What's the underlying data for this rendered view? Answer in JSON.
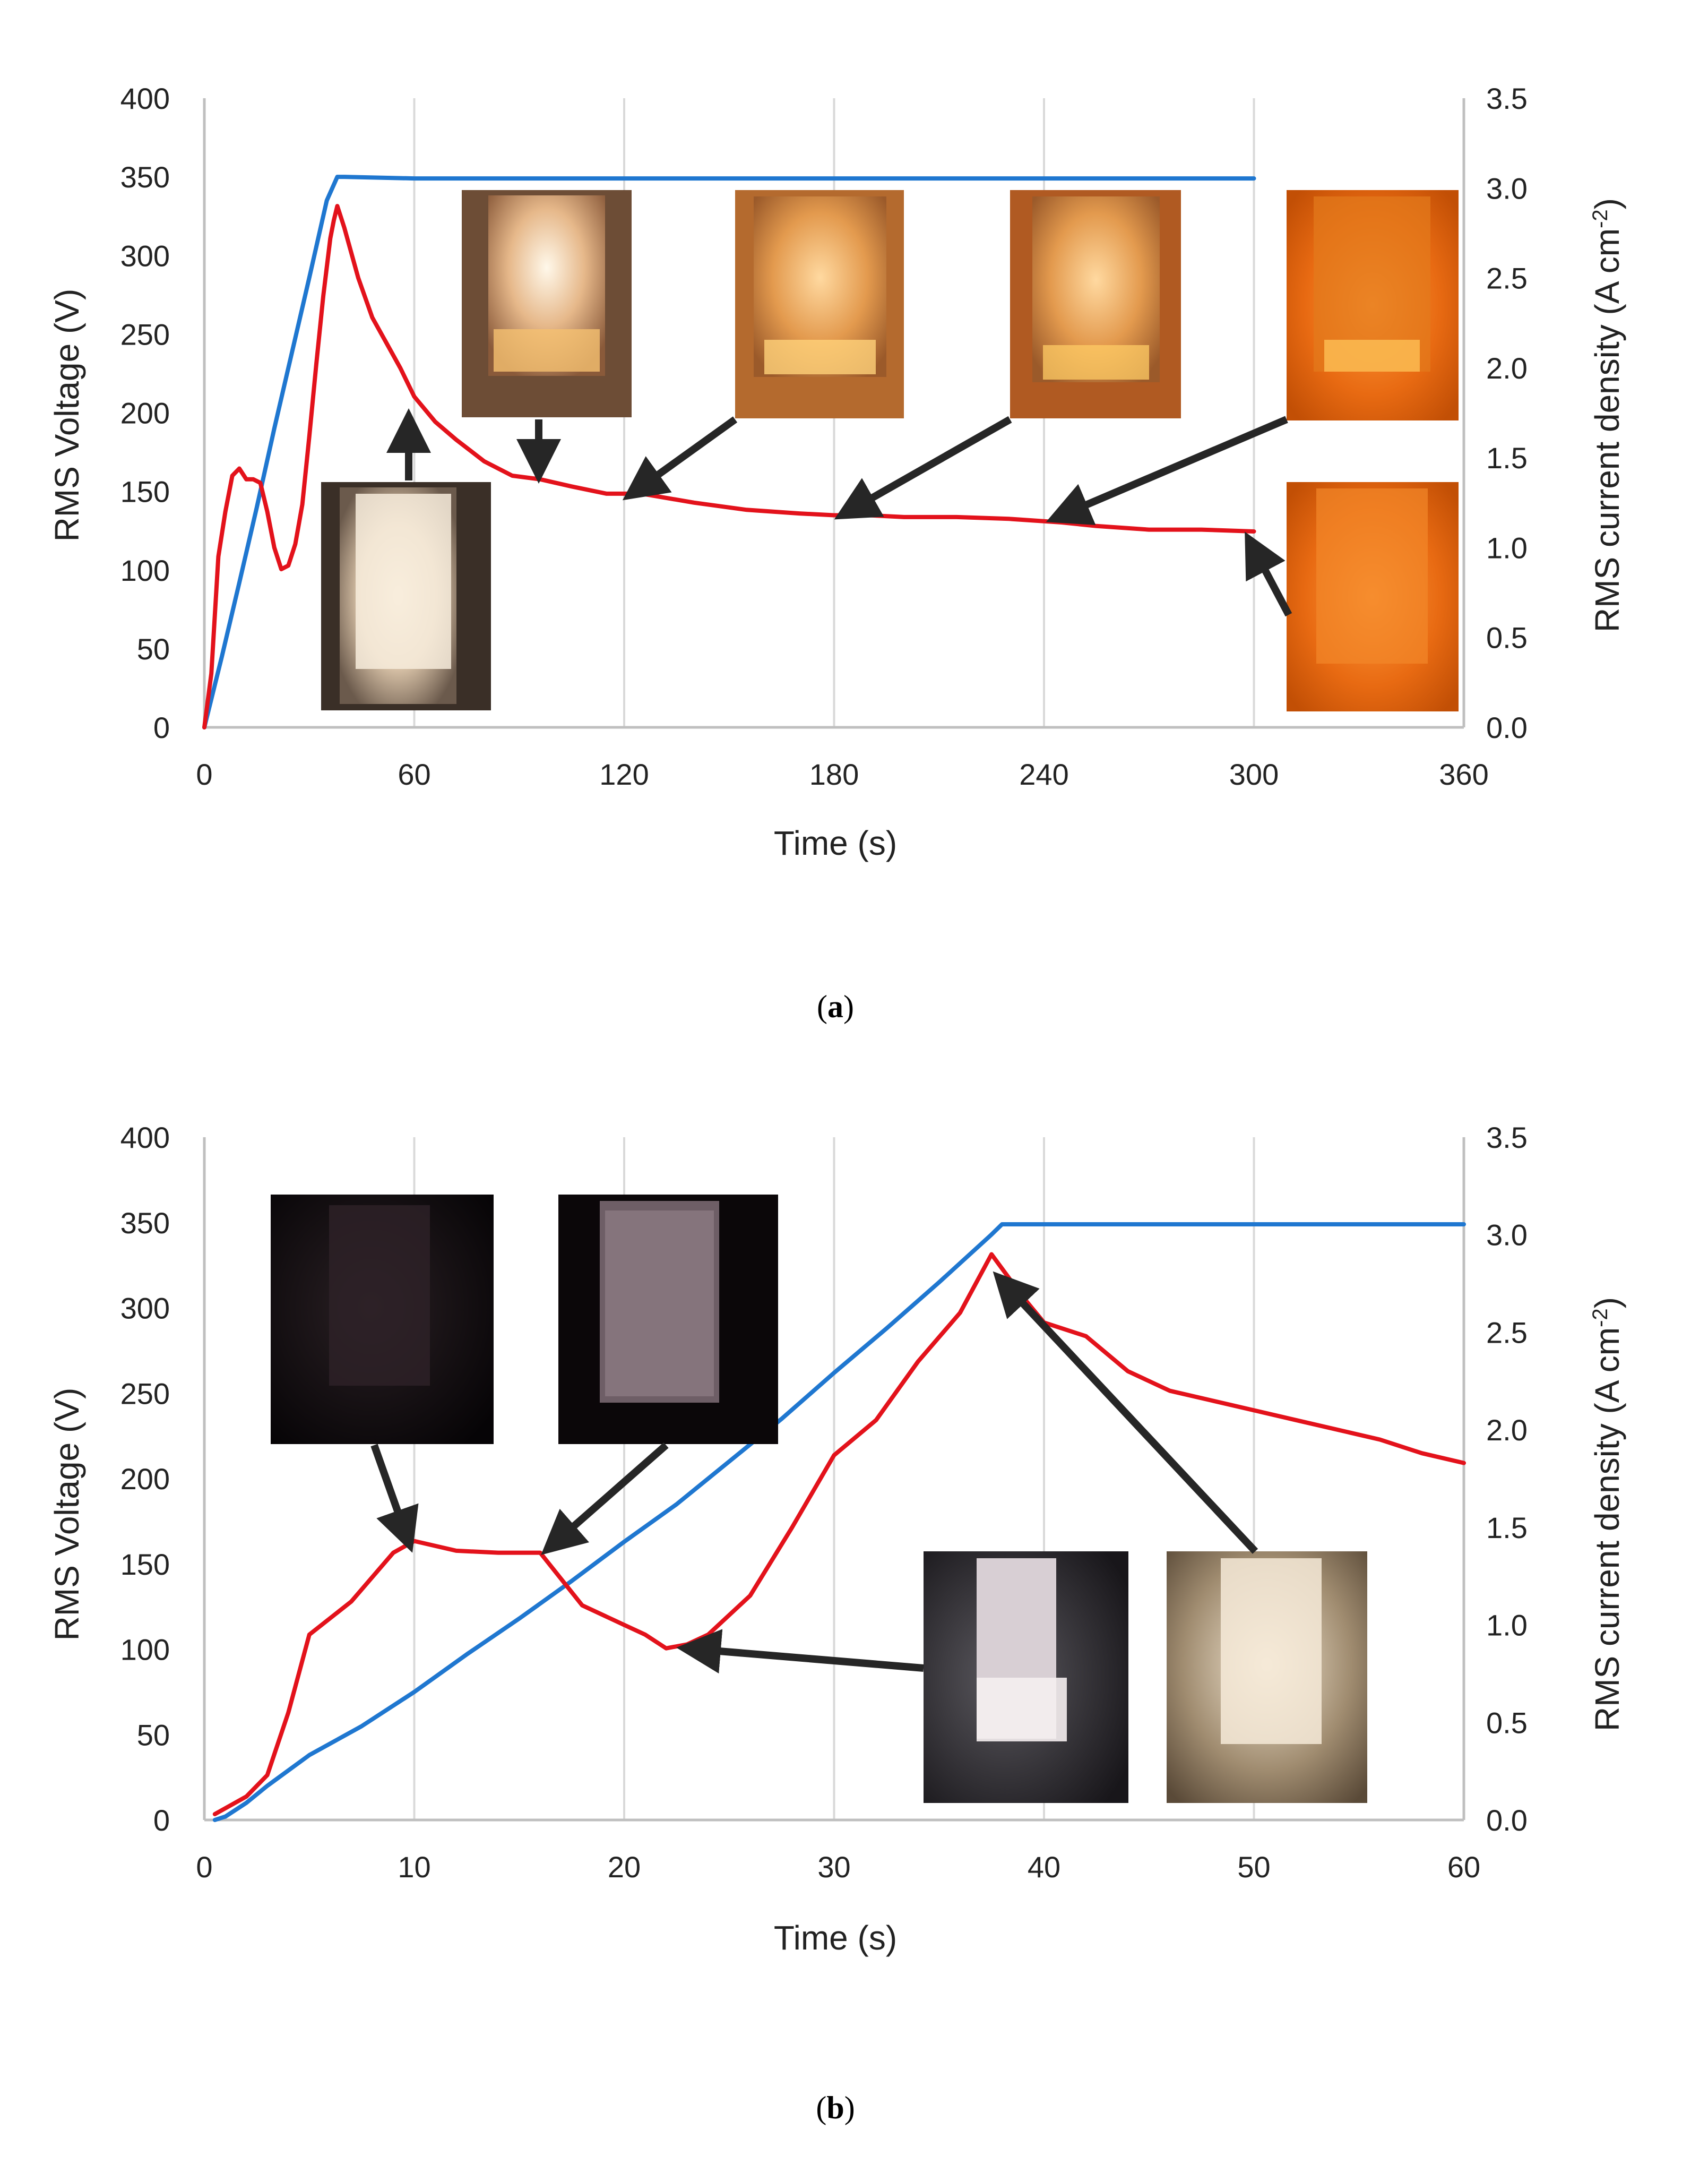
{
  "colors": {
    "voltage": "#1f77d0",
    "current": "#e3121b",
    "grid": "#d9d9d9",
    "axis": "#bfbfbf",
    "arrow": "#262626"
  },
  "chart_data": [
    {
      "id": "a",
      "type": "line",
      "caption_open": "(",
      "caption_letter": "a",
      "caption_close": ")",
      "xlabel": "Time (s)",
      "ylabel": "RMS Voltage (V)",
      "y2label_main": "RMS current density (A cm",
      "y2label_sup": "-2",
      "y2label_end": ")",
      "xlim": [
        0,
        360
      ],
      "ylim": [
        0,
        400
      ],
      "y2lim": [
        0,
        3.5
      ],
      "xticks": [
        "0",
        "60",
        "120",
        "180",
        "240",
        "300",
        "360"
      ],
      "yticks": [
        "0",
        "50",
        "100",
        "150",
        "200",
        "250",
        "300",
        "350",
        "400"
      ],
      "y2ticks": [
        "0.0",
        "0.5",
        "1.0",
        "1.5",
        "2.0",
        "2.5",
        "3.0",
        "3.5"
      ],
      "grid": "vertical",
      "series": [
        {
          "name": "RMS Voltage",
          "axis": "left",
          "x": [
            0,
            5,
            10,
            15,
            20,
            25,
            30,
            35,
            38,
            40,
            60,
            120,
            180,
            240,
            300
          ],
          "y": [
            0,
            45,
            92,
            140,
            190,
            238,
            286,
            335,
            350,
            350,
            349,
            349,
            349,
            349,
            349
          ]
        },
        {
          "name": "RMS current density",
          "axis": "right",
          "x": [
            0,
            2,
            4,
            6,
            8,
            10,
            12,
            14,
            16,
            18,
            20,
            22,
            24,
            26,
            28,
            30,
            32,
            34,
            36,
            37,
            38,
            40,
            44,
            48,
            52,
            56,
            60,
            66,
            72,
            80,
            88,
            96,
            105,
            115,
            125,
            140,
            155,
            170,
            180,
            190,
            200,
            215,
            230,
            245,
            255,
            270,
            285,
            300
          ],
          "y": [
            0.0,
            0.3,
            0.95,
            1.2,
            1.4,
            1.44,
            1.38,
            1.38,
            1.36,
            1.2,
            1.0,
            0.88,
            0.9,
            1.02,
            1.24,
            1.62,
            2.02,
            2.4,
            2.72,
            2.82,
            2.9,
            2.78,
            2.5,
            2.28,
            2.14,
            2.0,
            1.84,
            1.7,
            1.6,
            1.48,
            1.4,
            1.38,
            1.34,
            1.3,
            1.3,
            1.25,
            1.21,
            1.19,
            1.18,
            1.18,
            1.17,
            1.17,
            1.16,
            1.14,
            1.12,
            1.1,
            1.1,
            1.09
          ]
        }
      ],
      "annotations": [
        {
          "label": "inset-photo-1",
          "tone": "warm-white"
        },
        {
          "label": "inset-photo-2",
          "tone": "white-orange"
        },
        {
          "label": "inset-photo-3",
          "tone": "orange"
        },
        {
          "label": "inset-photo-4",
          "tone": "orange"
        },
        {
          "label": "inset-photo-5",
          "tone": "deep-orange"
        },
        {
          "label": "inset-photo-6",
          "tone": "deep-orange-dots"
        }
      ]
    },
    {
      "id": "b",
      "type": "line",
      "caption_open": "(",
      "caption_letter": "b",
      "caption_close": ")",
      "xlabel": "Time (s)",
      "ylabel": "RMS Voltage (V)",
      "y2label_main": "RMS current density (A cm",
      "y2label_sup": "-2",
      "y2label_end": ")",
      "xlim": [
        0,
        60
      ],
      "ylim": [
        0,
        400
      ],
      "y2lim": [
        0,
        3.5
      ],
      "xticks": [
        "0",
        "10",
        "20",
        "30",
        "40",
        "50",
        "60"
      ],
      "yticks": [
        "0",
        "50",
        "100",
        "150",
        "200",
        "250",
        "300",
        "350",
        "400"
      ],
      "y2ticks": [
        "0.0",
        "0.5",
        "1.0",
        "1.5",
        "2.0",
        "2.5",
        "3.0",
        "3.5"
      ],
      "grid": "vertical",
      "series": [
        {
          "name": "RMS Voltage",
          "axis": "left",
          "x": [
            0.5,
            1,
            2,
            3,
            5,
            7.5,
            10,
            12.5,
            15,
            17.5,
            20,
            22.5,
            25,
            27.5,
            30,
            32.5,
            35,
            37.5,
            38,
            40,
            45,
            50,
            55,
            60
          ],
          "y": [
            0,
            2,
            10,
            20,
            38,
            55,
            75,
            97,
            118,
            140,
            163,
            185,
            210,
            235,
            262,
            288,
            315,
            343,
            349,
            349,
            349,
            349,
            349,
            349
          ]
        },
        {
          "name": "RMS current density",
          "axis": "right",
          "x": [
            0.5,
            2,
            3,
            4,
            5,
            7,
            9,
            10,
            12,
            14,
            16,
            18,
            20,
            21,
            22,
            23,
            24,
            26,
            28,
            30,
            32,
            34,
            36,
            37.5,
            39,
            40,
            42,
            44,
            46,
            48,
            50,
            52,
            54,
            56,
            58,
            60
          ],
          "y": [
            0.03,
            0.12,
            0.23,
            0.55,
            0.95,
            1.12,
            1.37,
            1.43,
            1.38,
            1.37,
            1.37,
            1.1,
            1.0,
            0.95,
            0.88,
            0.9,
            0.95,
            1.15,
            1.5,
            1.87,
            2.05,
            2.35,
            2.6,
            2.9,
            2.68,
            2.55,
            2.48,
            2.3,
            2.2,
            2.15,
            2.1,
            2.05,
            2.0,
            1.95,
            1.88,
            1.83
          ]
        }
      ],
      "annotations": [
        {
          "label": "inset-photo-1",
          "tone": "dark"
        },
        {
          "label": "inset-photo-2",
          "tone": "dark-speckled"
        },
        {
          "label": "inset-photo-3",
          "tone": "grey-white"
        },
        {
          "label": "inset-photo-4",
          "tone": "warm-white"
        }
      ]
    }
  ]
}
